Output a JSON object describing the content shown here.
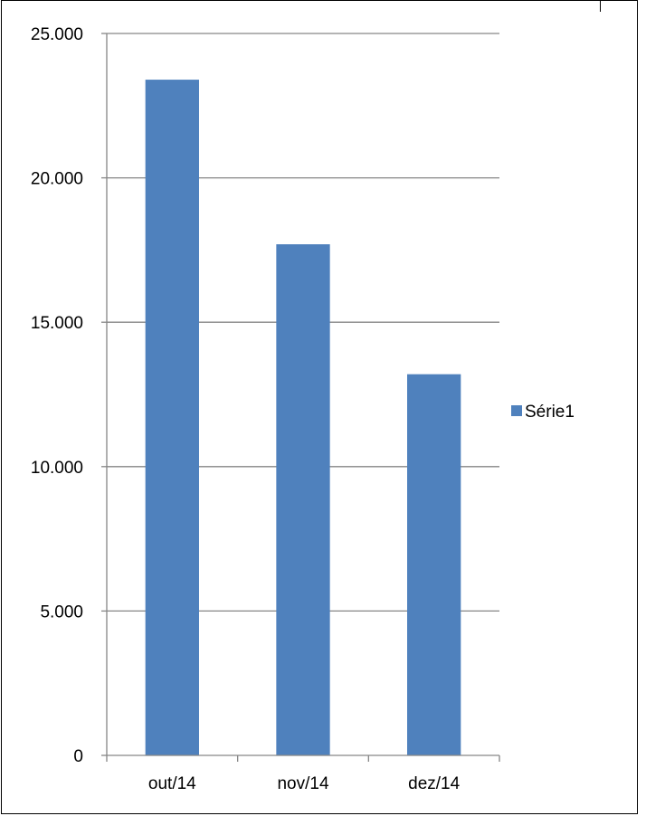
{
  "chart_data": {
    "type": "bar",
    "categories": [
      "out/14",
      "nov/14",
      "dez/14"
    ],
    "series": [
      {
        "name": "Série1",
        "values": [
          23400,
          17700,
          13200
        ],
        "color": "#4F81BD"
      }
    ],
    "ylim": [
      0,
      25000
    ],
    "yticks": [
      0,
      5000,
      10000,
      15000,
      20000,
      25000
    ],
    "ytick_labels": [
      "0",
      "5.000",
      "10.000",
      "15.000",
      "20.000",
      "25.000"
    ],
    "grid": true,
    "legend_position": "right"
  }
}
